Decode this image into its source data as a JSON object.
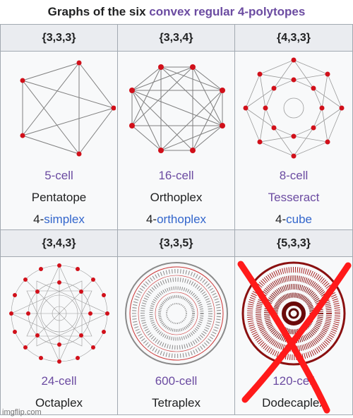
{
  "caption": {
    "prefix": "Graphs of the six",
    "link": "convex regular 4-polytopes"
  },
  "cells": [
    {
      "symbol": "{3,3,3}",
      "name": "5-cell",
      "alt": "Pentatope",
      "kind_prefix": "4-",
      "kind_link": "simplex"
    },
    {
      "symbol": "{3,3,4}",
      "name": "16-cell",
      "alt": "Orthoplex",
      "kind_prefix": "4-",
      "kind_link": "orthoplex"
    },
    {
      "symbol": "{4,3,3}",
      "name": "8-cell",
      "alt": "Tesseract",
      "kind_prefix": "4-",
      "kind_link": "cube"
    },
    {
      "symbol": "{3,4,3}",
      "name": "24-cell",
      "alt": "Octaplex"
    },
    {
      "symbol": "{3,3,5}",
      "name": "600-cell",
      "alt": "Tetraplex"
    },
    {
      "symbol": "{5,3,3}",
      "name": "120-cell",
      "alt": "Dodecaplex"
    }
  ],
  "colors": {
    "vertex": "#d1101a",
    "edge": "#808080",
    "link": "#3366cc",
    "visited_link": "#6b4ba1",
    "cross": "#ff1a1a"
  },
  "watermark": "imgflip.com"
}
